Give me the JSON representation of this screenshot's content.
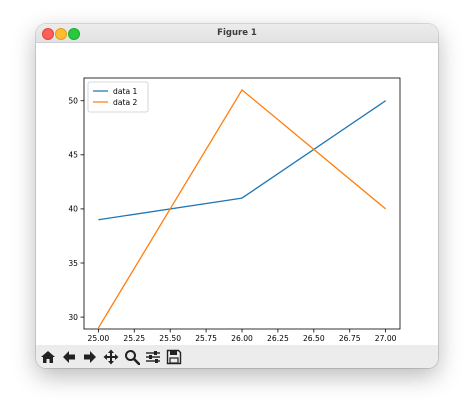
{
  "window": {
    "title": "Figure 1"
  },
  "toolbar": {
    "buttons": [
      {
        "name": "home-button",
        "icon": "home-icon"
      },
      {
        "name": "back-button",
        "icon": "arrow-left-icon"
      },
      {
        "name": "forward-button",
        "icon": "arrow-right-icon"
      },
      {
        "name": "pan-button",
        "icon": "move-icon"
      },
      {
        "name": "zoom-button",
        "icon": "magnifier-icon"
      },
      {
        "name": "configure-subplots-button",
        "icon": "sliders-icon"
      },
      {
        "name": "save-button",
        "icon": "floppy-disk-icon"
      }
    ]
  },
  "chart_data": {
    "type": "line",
    "x": [
      25.0,
      26.0,
      27.0
    ],
    "series": [
      {
        "name": "data 1",
        "values": [
          39,
          41,
          50
        ],
        "color": "#1f77b4"
      },
      {
        "name": "data 2",
        "values": [
          29,
          51,
          40
        ],
        "color": "#ff7f0e"
      }
    ],
    "xlim": [
      24.9,
      27.1
    ],
    "ylim": [
      28.9,
      52.1
    ],
    "xticks": [
      "25.00",
      "25.25",
      "25.50",
      "25.75",
      "26.00",
      "26.25",
      "26.50",
      "26.75",
      "27.00"
    ],
    "yticks": [
      "30",
      "35",
      "40",
      "45",
      "50"
    ],
    "grid": false,
    "legend": "top-left"
  }
}
